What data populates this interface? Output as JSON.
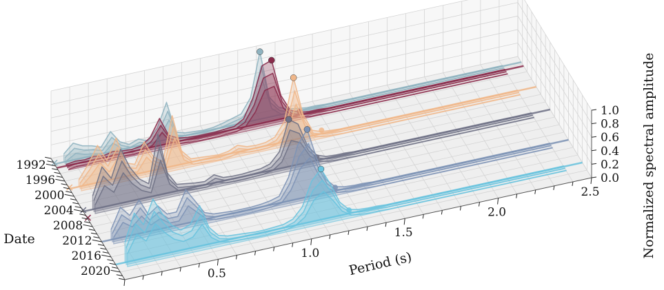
{
  "chart_data": {
    "type": "line",
    "title": "",
    "xlabel": "Period (s)",
    "ylabel": "Date",
    "zlabel": "Normalized spectral amplitude",
    "xlim": [
      0,
      2.5
    ],
    "zlim": [
      0,
      1.0
    ],
    "date_range": [
      1990,
      2022
    ],
    "x_ticks": [
      "0.5",
      "1.0",
      "1.5",
      "2.0",
      "2.5"
    ],
    "x_tick_values": [
      0.5,
      1.0,
      1.5,
      2.0,
      2.5
    ],
    "date_ticks": [
      "1992",
      "1996",
      "2000",
      "2004",
      "2008",
      "2012",
      "2016",
      "2020"
    ],
    "date_tick_values": [
      1992,
      1996,
      2000,
      2004,
      2008,
      2012,
      2016,
      2020
    ],
    "z_ticks": [
      "0.0",
      "0.2",
      "0.4",
      "0.6",
      "0.8",
      "1.0"
    ],
    "z_tick_values": [
      0,
      0.2,
      0.4,
      0.6,
      0.8,
      1.0
    ],
    "grid": true,
    "series": [
      {
        "date": 1991.5,
        "color": "#8fb3c0",
        "x": [
          0.05,
          0.1,
          0.15,
          0.2,
          0.25,
          0.3,
          0.35,
          0.4,
          0.45,
          0.5,
          0.55,
          0.6,
          0.65,
          0.7,
          0.75,
          0.8,
          0.85,
          0.9,
          0.95,
          1.0,
          1.05,
          1.1,
          1.15,
          1.2,
          1.25,
          1.3,
          1.35,
          1.4,
          1.45,
          1.5,
          1.55,
          1.6,
          1.65,
          1.7,
          1.75,
          1.8,
          1.85,
          1.9,
          1.95,
          2.0,
          2.05,
          2.1,
          2.15,
          2.2,
          2.25,
          2.3,
          2.35,
          2.4
        ],
        "z": [
          0.12,
          0.25,
          0.18,
          0.15,
          0.1,
          0.3,
          0.12,
          0.05,
          0.1,
          0.04,
          0.2,
          0.55,
          0.08,
          0.04,
          0.03,
          0.02,
          0.03,
          0.06,
          0.1,
          0.14,
          0.35,
          1.0,
          0.3,
          0.12,
          0.06,
          0.04,
          0.02,
          0.02,
          0.01,
          0.01,
          0.01,
          0.01,
          0.01,
          0.01,
          0.01,
          0.01,
          0.01,
          0.01,
          0.01,
          0.01,
          0.01,
          0.01,
          0.01,
          0.01,
          0.01,
          0.01,
          0.01,
          0.01
        ],
        "peak_marker": {
          "x": 1.1,
          "z": 1.0
        }
      },
      {
        "date": 1992.5,
        "color": "#8a2b4b",
        "x": [
          0.05,
          0.1,
          0.15,
          0.2,
          0.25,
          0.3,
          0.35,
          0.4,
          0.45,
          0.5,
          0.55,
          0.6,
          0.65,
          0.7,
          0.75,
          0.8,
          0.85,
          0.9,
          0.95,
          1.0,
          1.05,
          1.1,
          1.15,
          1.2,
          1.25,
          1.3,
          1.35,
          1.4,
          1.45,
          1.5,
          1.55,
          1.6,
          1.65,
          1.7,
          1.75,
          1.8,
          1.85,
          1.9,
          1.95,
          2.0,
          2.05,
          2.1,
          2.15,
          2.2,
          2.25,
          2.3,
          2.35,
          2.4
        ],
        "z": [
          0.02,
          0.04,
          0.03,
          0.05,
          0.03,
          0.06,
          0.04,
          0.03,
          0.05,
          0.15,
          0.4,
          0.12,
          0.05,
          0.03,
          0.02,
          0.02,
          0.02,
          0.03,
          0.04,
          0.12,
          0.4,
          0.85,
          0.9,
          0.35,
          0.1,
          0.04,
          0.02,
          0.02,
          0.01,
          0.01,
          0.01,
          0.01,
          0.01,
          0.01,
          0.01,
          0.01,
          0.01,
          0.01,
          0.01,
          0.01,
          0.01,
          0.01,
          0.01,
          0.01,
          0.01,
          0.01,
          0.01,
          0.01
        ],
        "peak_marker": {
          "x": 1.15,
          "z": 0.9
        }
      },
      {
        "date": 1998.0,
        "color": "#f0b78a",
        "x": [
          0.05,
          0.1,
          0.15,
          0.2,
          0.25,
          0.3,
          0.35,
          0.4,
          0.45,
          0.5,
          0.55,
          0.6,
          0.65,
          0.7,
          0.75,
          0.8,
          0.85,
          0.9,
          0.95,
          1.0,
          1.05,
          1.1,
          1.15,
          1.2,
          1.25,
          1.3,
          1.35,
          1.4,
          1.45,
          1.5,
          1.55,
          1.6,
          1.65,
          1.7,
          1.75,
          1.8,
          1.85,
          1.9,
          1.95,
          2.0,
          2.05,
          2.1,
          2.15,
          2.2,
          2.25,
          2.3,
          2.35,
          2.4
        ],
        "z": [
          0.1,
          0.3,
          0.55,
          0.3,
          0.6,
          0.2,
          0.15,
          0.45,
          0.2,
          0.1,
          0.75,
          0.2,
          0.05,
          0.04,
          0.03,
          0.02,
          0.04,
          0.1,
          0.05,
          0.04,
          0.05,
          0.1,
          0.3,
          0.92,
          0.35,
          0.08,
          0.03,
          0.02,
          0.01,
          0.01,
          0.01,
          0.01,
          0.01,
          0.01,
          0.01,
          0.01,
          0.01,
          0.01,
          0.01,
          0.01,
          0.01,
          0.01,
          0.01,
          0.01,
          0.01,
          0.01,
          0.01,
          0.01
        ],
        "peak_marker": {
          "x": 1.2,
          "z": 0.92
        }
      },
      {
        "date": 2004.0,
        "color": "#6f7186",
        "x": [
          0.05,
          0.1,
          0.15,
          0.2,
          0.25,
          0.3,
          0.35,
          0.4,
          0.45,
          0.5,
          0.55,
          0.6,
          0.65,
          0.7,
          0.75,
          0.8,
          0.85,
          0.9,
          0.95,
          1.0,
          1.05,
          1.1,
          1.15,
          1.2,
          1.25,
          1.3,
          1.35,
          1.4,
          1.45,
          1.5,
          1.55,
          1.6,
          1.65,
          1.7,
          1.75,
          1.8,
          1.85,
          1.9,
          1.95,
          2.0,
          2.05,
          2.1,
          2.15,
          2.2,
          2.25,
          2.3,
          2.35,
          2.4
        ],
        "z": [
          0.2,
          0.6,
          0.4,
          0.8,
          0.5,
          0.3,
          0.2,
          0.9,
          0.3,
          0.1,
          0.08,
          0.06,
          0.05,
          0.12,
          0.05,
          0.04,
          0.04,
          0.05,
          0.06,
          0.1,
          0.25,
          0.7,
          0.6,
          0.25,
          0.08,
          0.03,
          0.02,
          0.02,
          0.01,
          0.01,
          0.01,
          0.01,
          0.01,
          0.01,
          0.01,
          0.01,
          0.01,
          0.01,
          0.01,
          0.01,
          0.01,
          0.01,
          0.01,
          0.01,
          0.01,
          0.01,
          0.01,
          0.01
        ],
        "peak_marker": {
          "x": 1.1,
          "z": 0.7
        }
      },
      {
        "date": 2012.0,
        "color": "#7d93b5",
        "x": [
          0.05,
          0.1,
          0.15,
          0.2,
          0.25,
          0.3,
          0.35,
          0.4,
          0.45,
          0.5,
          0.55,
          0.6,
          0.65,
          0.7,
          0.75,
          0.8,
          0.85,
          0.9,
          0.95,
          1.0,
          1.05,
          1.1,
          1.15,
          1.2,
          1.25,
          1.3,
          1.35,
          1.4,
          1.45,
          1.5,
          1.55,
          1.6,
          1.65,
          1.7,
          1.75,
          1.8,
          1.85,
          1.9,
          1.95,
          2.0,
          2.05,
          2.1,
          2.15,
          2.2,
          2.25,
          2.3,
          2.35,
          2.4
        ],
        "z": [
          0.15,
          0.45,
          0.3,
          0.5,
          0.25,
          0.35,
          0.2,
          0.2,
          0.5,
          0.3,
          0.1,
          0.05,
          0.04,
          0.03,
          0.03,
          0.03,
          0.04,
          0.06,
          0.1,
          0.35,
          0.8,
          1.0,
          0.55,
          0.2,
          0.06,
          0.03,
          0.02,
          0.02,
          0.01,
          0.01,
          0.01,
          0.01,
          0.01,
          0.01,
          0.01,
          0.01,
          0.01,
          0.01,
          0.01,
          0.01,
          0.01,
          0.01,
          0.01,
          0.01,
          0.01,
          0.01,
          0.01,
          0.01
        ],
        "peak_marker": {
          "x": 1.1,
          "z": 1.0
        }
      },
      {
        "date": 2018.0,
        "color": "#69c3de",
        "x": [
          0.05,
          0.1,
          0.15,
          0.2,
          0.25,
          0.3,
          0.35,
          0.4,
          0.45,
          0.5,
          0.55,
          0.6,
          0.65,
          0.7,
          0.75,
          0.8,
          0.85,
          0.9,
          0.95,
          1.0,
          1.05,
          1.1,
          1.15,
          1.2,
          1.25,
          1.3,
          1.35,
          1.4,
          1.45,
          1.5,
          1.55,
          1.6,
          1.65,
          1.7,
          1.75,
          1.8,
          1.85,
          1.9,
          1.95,
          2.0,
          2.05,
          2.1,
          2.15,
          2.2,
          2.25,
          2.3,
          2.35,
          2.4
        ],
        "z": [
          0.3,
          0.7,
          0.5,
          0.85,
          0.6,
          0.4,
          0.3,
          0.35,
          0.6,
          0.25,
          0.1,
          0.06,
          0.05,
          0.04,
          0.03,
          0.03,
          0.04,
          0.05,
          0.1,
          0.25,
          0.6,
          0.75,
          0.5,
          0.2,
          0.06,
          0.03,
          0.02,
          0.02,
          0.01,
          0.01,
          0.01,
          0.01,
          0.01,
          0.01,
          0.01,
          0.01,
          0.01,
          0.01,
          0.01,
          0.01,
          0.01,
          0.01,
          0.01,
          0.01,
          0.01,
          0.01,
          0.01,
          0.01
        ],
        "peak_marker": {
          "x": 1.1,
          "z": 0.75
        }
      }
    ],
    "cross_markers": [
      {
        "date": 1991.5,
        "x": 0.0,
        "z": 0.02,
        "color": "#8fb3c0"
      },
      {
        "date": 1998.0,
        "x": 0.0,
        "z": 0.02,
        "color": "#f0b78a"
      },
      {
        "date": 2004.0,
        "x": 0.0,
        "z": 0.02,
        "color": "#6f7186"
      },
      {
        "date": 2006.0,
        "x": 0.0,
        "z": 0.02,
        "color": "#8a2b4b"
      }
    ],
    "colors": {
      "pane": "#f7f7f7",
      "floor": "#efefef"
    }
  }
}
